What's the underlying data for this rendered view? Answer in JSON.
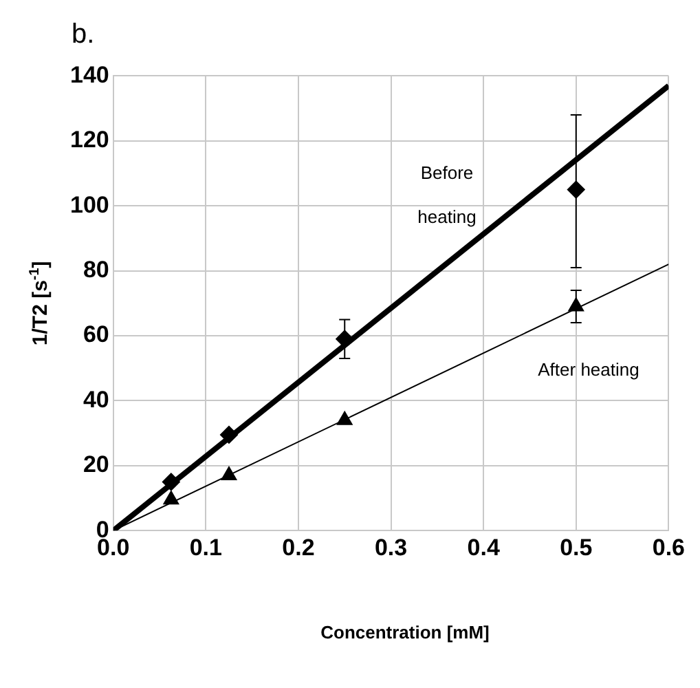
{
  "chart_data": {
    "type": "scatter",
    "title": "b.",
    "xlabel": "Concentration [mM]",
    "ylabel": "1/T2 [s$^{-1}$]",
    "xlim": [
      0,
      0.6
    ],
    "ylim": [
      0,
      140
    ],
    "xticks": [
      {
        "value": 0,
        "label": "0.0"
      },
      {
        "value": 0.1,
        "label": "0.1"
      },
      {
        "value": 0.2,
        "label": "0.2"
      },
      {
        "value": 0.3,
        "label": "0.3"
      },
      {
        "value": 0.4,
        "label": "0.4"
      },
      {
        "value": 0.5,
        "label": "0.5"
      },
      {
        "value": 0.6,
        "label": "0.6"
      }
    ],
    "yticks": [
      0,
      20,
      40,
      60,
      80,
      100,
      120,
      140
    ],
    "grid": true,
    "legend": false,
    "series": [
      {
        "type": "scatter",
        "marker": "diamond",
        "color": "#000000",
        "x": [
          0.0625,
          0.125,
          0.25,
          0.5
        ],
        "values": [
          15,
          29.5,
          59,
          105
        ],
        "errors": [
          null,
          null,
          [
            53,
            65
          ],
          [
            81,
            128
          ]
        ]
      },
      {
        "type": "scatter",
        "marker": "triangle",
        "color": "#000000",
        "x": [
          0.0625,
          0.125,
          0.25,
          0.5
        ],
        "values": [
          9.5,
          17,
          34,
          69
        ],
        "errors": [
          null,
          null,
          null,
          [
            64,
            74
          ]
        ]
      },
      {
        "type": "line",
        "marker": "none",
        "color": "#000000",
        "x": [
          0,
          0.6
        ],
        "values": [
          0,
          137
        ]
      },
      {
        "type": "line",
        "marker": "none",
        "color": "#000000",
        "x": [
          0,
          0.6
        ],
        "values": [
          0,
          82
        ]
      }
    ],
    "annotations": [
      "Before heating",
      "After heating"
    ]
  }
}
